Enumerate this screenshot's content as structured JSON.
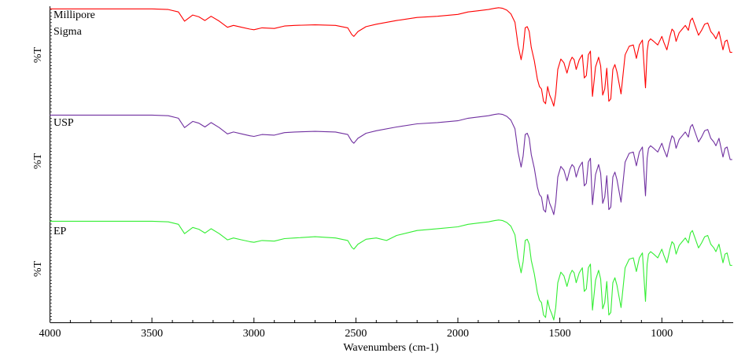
{
  "chart_data": {
    "type": "line",
    "title": "",
    "xlabel": "Wavenumbers (cm-1)",
    "xlim": [
      4000,
      650
    ],
    "x_reversed": true,
    "x_ticks": [
      4000,
      3500,
      3000,
      2500,
      2000,
      1500,
      1000
    ],
    "x_tick_labels": [
      "4000",
      "3500",
      "3000",
      "2500",
      "2000",
      "1500",
      "1000"
    ],
    "grid": false,
    "legend": "none",
    "panels": [
      {
        "label_lines": [
          "Millipore",
          "Sigma"
        ],
        "ylabel": "%T",
        "color": "#ff0000",
        "name": "Millipore Sigma",
        "x": [
          4000,
          3500,
          3420,
          3370,
          3340,
          3300,
          3270,
          3240,
          3210,
          3170,
          3130,
          3100,
          3060,
          3020,
          3000,
          2960,
          2900,
          2850,
          2800,
          2700,
          2600,
          2540,
          2520,
          2510,
          2490,
          2450,
          2400,
          2300,
          2200,
          2100,
          2000,
          1950,
          1900,
          1850,
          1820,
          1800,
          1780,
          1760,
          1740,
          1720,
          1705,
          1690,
          1680,
          1670,
          1660,
          1650,
          1640,
          1625,
          1610,
          1600,
          1590,
          1580,
          1570,
          1560,
          1550,
          1540,
          1530,
          1520,
          1510,
          1495,
          1480,
          1465,
          1450,
          1440,
          1430,
          1420,
          1405,
          1390,
          1380,
          1370,
          1360,
          1350,
          1340,
          1325,
          1310,
          1300,
          1290,
          1280,
          1270,
          1260,
          1250,
          1240,
          1230,
          1220,
          1200,
          1180,
          1160,
          1140,
          1125,
          1110,
          1095,
          1080,
          1072,
          1065,
          1055,
          1040,
          1020,
          1000,
          990,
          975,
          960,
          950,
          940,
          930,
          915,
          900,
          885,
          870,
          860,
          850,
          835,
          820,
          805,
          790,
          775,
          760,
          745,
          735,
          720,
          700,
          690,
          680,
          665,
          655
        ],
        "y": [
          99.5,
          99.5,
          99.0,
          97.0,
          89.5,
          94.5,
          93.0,
          90.0,
          93.5,
          89.5,
          84.5,
          86.0,
          84.5,
          83.0,
          82.5,
          84.0,
          83.5,
          85.5,
          86.0,
          86.5,
          86.0,
          84.0,
          78.5,
          77.0,
          81.0,
          85.0,
          87.0,
          90.0,
          92.5,
          93.5,
          95.0,
          97.0,
          98.0,
          99.0,
          100.0,
          100.5,
          100.0,
          98.5,
          95.5,
          88.5,
          70.0,
          58.0,
          67.0,
          84.0,
          85.0,
          81.0,
          68.0,
          57.0,
          42.0,
          36.0,
          34.0,
          24.0,
          22.0,
          36.0,
          29.0,
          25.0,
          20.0,
          30.0,
          50.0,
          58.5,
          55.5,
          47.0,
          56.5,
          60.0,
          58.0,
          50.0,
          58.0,
          62.0,
          43.0,
          45.0,
          62.0,
          65.0,
          28.0,
          52.0,
          60.0,
          53.0,
          29.0,
          34.0,
          51.0,
          24.0,
          26.0,
          50.0,
          54.0,
          48.0,
          30.0,
          62.0,
          69.0,
          70.0,
          59.0,
          70.0,
          74.0,
          35.0,
          65.0,
          73.0,
          75.0,
          73.0,
          70.0,
          77.0,
          72.0,
          66.0,
          77.0,
          83.0,
          81.0,
          73.0,
          80.0,
          83.0,
          86.0,
          82.0,
          90.0,
          92.0,
          85.0,
          78.0,
          82.0,
          87.0,
          88.0,
          81.0,
          78.0,
          75.0,
          81.0,
          66.0,
          73.0,
          74.0,
          64.0,
          64.0
        ]
      },
      {
        "label_lines": [
          "USP"
        ],
        "ylabel": "%T",
        "color": "#7030a0",
        "name": "USP",
        "x": [
          4000,
          3500,
          3420,
          3370,
          3340,
          3300,
          3270,
          3240,
          3210,
          3170,
          3130,
          3100,
          3060,
          3020,
          3000,
          2960,
          2900,
          2850,
          2800,
          2700,
          2600,
          2540,
          2520,
          2510,
          2490,
          2450,
          2400,
          2300,
          2200,
          2100,
          2000,
          1950,
          1900,
          1850,
          1820,
          1800,
          1780,
          1760,
          1740,
          1720,
          1705,
          1690,
          1680,
          1670,
          1660,
          1650,
          1640,
          1625,
          1610,
          1600,
          1590,
          1580,
          1570,
          1560,
          1550,
          1540,
          1530,
          1520,
          1510,
          1495,
          1480,
          1465,
          1450,
          1440,
          1430,
          1420,
          1405,
          1390,
          1380,
          1370,
          1360,
          1350,
          1340,
          1325,
          1310,
          1300,
          1290,
          1280,
          1270,
          1260,
          1250,
          1240,
          1230,
          1220,
          1200,
          1180,
          1160,
          1140,
          1125,
          1110,
          1095,
          1080,
          1072,
          1065,
          1055,
          1040,
          1020,
          1000,
          990,
          975,
          960,
          950,
          940,
          930,
          915,
          900,
          885,
          870,
          860,
          850,
          835,
          820,
          805,
          790,
          775,
          760,
          745,
          735,
          720,
          700,
          690,
          680,
          665,
          655
        ],
        "y": [
          99.5,
          99.5,
          99.0,
          97.0,
          89.5,
          94.5,
          93.0,
          90.0,
          93.5,
          89.5,
          84.5,
          86.0,
          84.5,
          83.0,
          82.5,
          84.0,
          83.5,
          85.5,
          86.0,
          86.5,
          86.0,
          84.0,
          78.5,
          77.0,
          81.0,
          85.0,
          87.0,
          90.0,
          92.5,
          93.5,
          95.0,
          97.0,
          98.0,
          99.0,
          100.0,
          100.5,
          100.0,
          98.5,
          95.5,
          88.5,
          70.0,
          58.0,
          67.0,
          84.0,
          85.0,
          81.0,
          68.0,
          57.0,
          42.0,
          36.0,
          34.0,
          24.0,
          22.0,
          36.0,
          29.0,
          25.0,
          20.0,
          30.0,
          50.0,
          58.5,
          55.5,
          47.0,
          56.5,
          60.0,
          58.0,
          50.0,
          58.0,
          62.0,
          43.0,
          45.0,
          62.0,
          65.0,
          28.0,
          52.0,
          60.0,
          53.0,
          29.0,
          34.0,
          51.0,
          24.0,
          26.0,
          50.0,
          54.0,
          48.0,
          30.0,
          62.0,
          69.0,
          70.0,
          59.0,
          70.0,
          74.0,
          35.0,
          65.0,
          73.0,
          75.0,
          73.0,
          70.0,
          77.0,
          72.0,
          66.0,
          77.0,
          83.0,
          81.0,
          73.0,
          80.0,
          83.0,
          86.0,
          82.0,
          90.0,
          92.0,
          85.0,
          78.0,
          82.0,
          87.0,
          88.0,
          81.0,
          78.0,
          75.0,
          81.0,
          66.0,
          73.0,
          74.0,
          64.0,
          64.0
        ]
      },
      {
        "label_lines": [
          "EP"
        ],
        "ylabel": "%T",
        "color": "#33ee33",
        "name": "EP",
        "x": [
          4000,
          3500,
          3420,
          3370,
          3340,
          3300,
          3270,
          3240,
          3210,
          3170,
          3130,
          3100,
          3060,
          3020,
          3000,
          2960,
          2900,
          2850,
          2800,
          2700,
          2600,
          2540,
          2520,
          2510,
          2490,
          2450,
          2400,
          2350,
          2300,
          2200,
          2100,
          2000,
          1950,
          1900,
          1850,
          1820,
          1800,
          1780,
          1760,
          1740,
          1720,
          1705,
          1690,
          1680,
          1670,
          1660,
          1650,
          1640,
          1625,
          1610,
          1600,
          1590,
          1580,
          1570,
          1560,
          1550,
          1540,
          1530,
          1520,
          1510,
          1495,
          1480,
          1465,
          1450,
          1440,
          1430,
          1420,
          1405,
          1390,
          1380,
          1370,
          1360,
          1350,
          1340,
          1325,
          1310,
          1300,
          1290,
          1280,
          1270,
          1260,
          1250,
          1240,
          1230,
          1220,
          1200,
          1180,
          1160,
          1140,
          1125,
          1110,
          1095,
          1080,
          1072,
          1065,
          1055,
          1040,
          1020,
          1000,
          990,
          975,
          960,
          950,
          940,
          930,
          915,
          900,
          885,
          870,
          860,
          850,
          835,
          820,
          805,
          790,
          775,
          760,
          745,
          735,
          720,
          700,
          690,
          680,
          665,
          655
        ],
        "y": [
          99.5,
          99.5,
          99.0,
          97.0,
          89.5,
          94.5,
          93.0,
          90.0,
          93.5,
          89.5,
          84.5,
          86.0,
          84.5,
          83.0,
          82.5,
          84.0,
          83.5,
          85.5,
          86.0,
          87.0,
          86.0,
          84.0,
          78.5,
          77.0,
          81.0,
          85.0,
          86.0,
          84.0,
          88.0,
          92.0,
          93.5,
          95.0,
          97.0,
          98.0,
          99.0,
          100.0,
          100.5,
          100.0,
          98.5,
          95.5,
          88.5,
          70.0,
          58.0,
          67.0,
          84.0,
          85.0,
          81.0,
          68.0,
          57.0,
          42.0,
          36.0,
          34.0,
          24.0,
          22.0,
          36.0,
          29.0,
          25.0,
          20.0,
          30.0,
          50.0,
          58.5,
          55.5,
          47.0,
          56.5,
          60.0,
          58.0,
          50.0,
          58.0,
          62.0,
          43.0,
          45.0,
          62.0,
          65.0,
          28.0,
          52.0,
          60.0,
          53.0,
          29.0,
          34.0,
          51.0,
          24.0,
          26.0,
          50.0,
          54.0,
          48.0,
          30.0,
          62.0,
          69.0,
          70.0,
          59.0,
          70.0,
          74.0,
          35.0,
          65.0,
          73.0,
          75.0,
          73.0,
          70.0,
          77.0,
          72.0,
          66.0,
          77.0,
          83.0,
          81.0,
          73.0,
          80.0,
          83.0,
          86.0,
          82.0,
          90.0,
          92.0,
          85.0,
          78.0,
          82.0,
          87.0,
          88.0,
          81.0,
          78.0,
          75.0,
          81.0,
          66.0,
          73.0,
          74.0,
          64.0,
          64.0
        ]
      }
    ]
  }
}
